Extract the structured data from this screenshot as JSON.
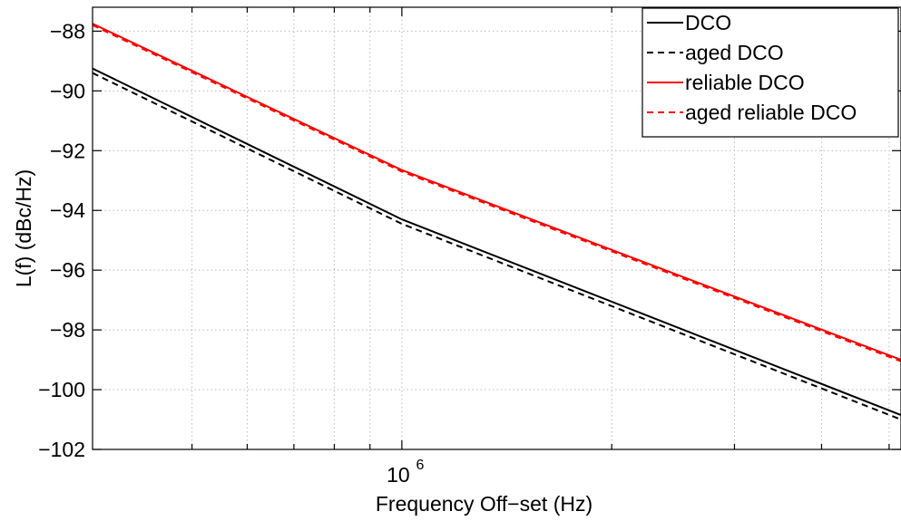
{
  "chart_data": {
    "type": "line",
    "title": "",
    "xlabel": "Frequency Off−set (Hz)",
    "ylabel": "L(f) (dBc/Hz)",
    "x_scale": "log",
    "xlim": [
      360000,
      5200000
    ],
    "ylim": [
      -102,
      -87.2
    ],
    "x_tick_label": "10",
    "x_tick_label_exponent": "6",
    "y_ticks": [
      -88,
      -90,
      -92,
      -94,
      -96,
      -98,
      -100,
      -102
    ],
    "y_tick_labels": [
      "−88",
      "−90",
      "−92",
      "−94",
      "−96",
      "−98",
      "−100",
      "−102"
    ],
    "grid": true,
    "legend_position": "top-right",
    "series": [
      {
        "name": "DCO",
        "color": "#000000",
        "style": "solid",
        "x": [
          360000,
          1000000,
          5200000
        ],
        "y": [
          -89.25,
          -94.3,
          -100.85
        ]
      },
      {
        "name": "aged DCO",
        "color": "#000000",
        "style": "dashed",
        "x": [
          360000,
          1000000,
          5200000
        ],
        "y": [
          -89.4,
          -94.45,
          -101.0
        ]
      },
      {
        "name": "reliable DCO",
        "color": "#ff0000",
        "style": "solid",
        "x": [
          360000,
          1000000,
          5200000
        ],
        "y": [
          -87.75,
          -92.65,
          -99.0
        ]
      },
      {
        "name": "aged reliable DCO",
        "color": "#ff0000",
        "style": "dashed",
        "x": [
          360000,
          1000000,
          5200000
        ],
        "y": [
          -87.8,
          -92.7,
          -99.05
        ]
      }
    ]
  }
}
